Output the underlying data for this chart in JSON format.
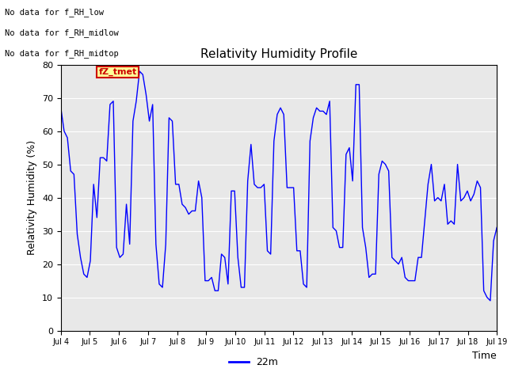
{
  "title": "Relativity Humidity Profile",
  "xlabel": "Time",
  "ylabel": "Relativity Humidity (%)",
  "legend_label": "22m",
  "line_color": "#0000FF",
  "background_color": "#E8E8E8",
  "ylim": [
    0,
    80
  ],
  "yticks": [
    0,
    10,
    20,
    30,
    40,
    50,
    60,
    70,
    80
  ],
  "xtick_labels": [
    "Jul 4",
    "Jul 5",
    "Jul 6",
    "Jul 7",
    "Jul 8",
    "Jul 9",
    "Jul 10",
    "Jul 11",
    "Jul 12",
    "Jul 13",
    "Jul 14",
    "Jul 15",
    "Jul 16",
    "Jul 17",
    "Jul 18",
    "Jul 19"
  ],
  "annotations": [
    "No data for f_RH_low",
    "No data for f_RH_midlow",
    "No data for f_RH_midtop"
  ],
  "watermark_text": "fZ_tmet",
  "watermark_color": "#CC0000",
  "watermark_bg": "#FFFF99",
  "rh_values": [
    67,
    60,
    58,
    48,
    47,
    29,
    22,
    17,
    16,
    21,
    44,
    34,
    52,
    52,
    51,
    68,
    69,
    25,
    22,
    23,
    38,
    26,
    63,
    69,
    78,
    77,
    71,
    63,
    68,
    26,
    14,
    13,
    26,
    64,
    63,
    44,
    44,
    38,
    37,
    35,
    36,
    36,
    45,
    40,
    15,
    15,
    16,
    12,
    12,
    23,
    22,
    14,
    42,
    42,
    22,
    13,
    13,
    45,
    56,
    44,
    43,
    43,
    44,
    24,
    23,
    57,
    65,
    67,
    65,
    43,
    43,
    43,
    24,
    24,
    14,
    13,
    57,
    64,
    67,
    66,
    66,
    65,
    69,
    31,
    30,
    25,
    25,
    53,
    55,
    45,
    74,
    74,
    31,
    25,
    16,
    17,
    17,
    47,
    51,
    50,
    48,
    22,
    21,
    20,
    22,
    16,
    15,
    15,
    15,
    22,
    22,
    33,
    44,
    50,
    39,
    40,
    39,
    44,
    32,
    33,
    32,
    50,
    39,
    40,
    42,
    39,
    41,
    45,
    43,
    12,
    10,
    9,
    27,
    31
  ]
}
